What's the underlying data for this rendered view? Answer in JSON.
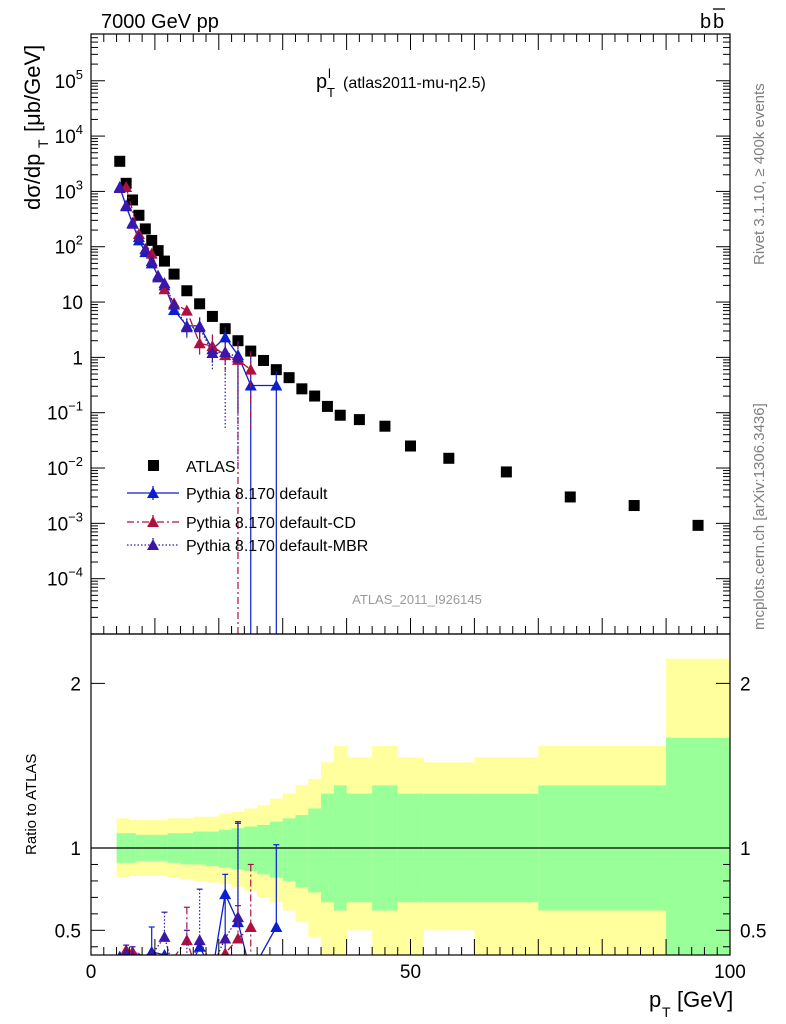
{
  "header": {
    "left": "7000 GeV pp",
    "right_main": "b",
    "right_bar": "b"
  },
  "side": {
    "rivet": "Rivet 3.1.10, ≥ 400k events",
    "mcplots": "mcplots.cern.ch [arXiv:1306.3436]"
  },
  "chart_data": [
    {
      "type": "scatter",
      "title": "p",
      "title_sup": "l",
      "title_sub": "T",
      "title_extra": "(atlas2011-mu-η2.5)",
      "ylabel": "dσ/dp",
      "ylabel_sub": "T",
      "ylabel_unit": "[μb/GeV]",
      "xlabel": "p",
      "xlabel_sub": "T",
      "xlabel_unit": "[GeV]",
      "watermark": "ATLAS_2011_I926145",
      "yscale": "log",
      "xlim": [
        0,
        100
      ],
      "ylim": [
        1e-05,
        700000.0
      ],
      "yticks": [
        {
          "v": 0.0001,
          "b": "10",
          "e": "−4"
        },
        {
          "v": 0.001,
          "b": "10",
          "e": "−3"
        },
        {
          "v": 0.01,
          "b": "10",
          "e": "−2"
        },
        {
          "v": 0.1,
          "b": "10",
          "e": "−1"
        },
        {
          "v": 1,
          "b": "1",
          "e": ""
        },
        {
          "v": 10,
          "b": "10",
          "e": ""
        },
        {
          "v": 100,
          "b": "10",
          "e": "2"
        },
        {
          "v": 1000,
          "b": "10",
          "e": "3"
        },
        {
          "v": 10000,
          "b": "10",
          "e": "4"
        },
        {
          "v": 100000,
          "b": "10",
          "e": "5"
        }
      ],
      "legend_position": "lower-left",
      "series": [
        {
          "name": "ATLAS",
          "style": "data",
          "color": "#000000",
          "x": [
            4.5,
            5.5,
            6.5,
            7.5,
            8.5,
            9.5,
            10.5,
            11.5,
            13,
            15,
            17,
            19,
            21,
            23,
            25,
            27,
            29,
            31,
            33,
            35,
            37,
            39,
            42,
            46,
            50,
            56,
            65,
            75,
            85,
            95
          ],
          "y": [
            3500,
            1400,
            700,
            370,
            210,
            130,
            85,
            55,
            32,
            16,
            9.3,
            5.5,
            3.3,
            2.0,
            1.3,
            0.88,
            0.6,
            0.43,
            0.27,
            0.2,
            0.13,
            0.09,
            0.075,
            0.057,
            0.025,
            0.015,
            0.0085,
            0.003,
            0.0021,
            0.00092
          ]
        },
        {
          "name": "Pythia 8.170 default",
          "style": "solid",
          "color": "#0a1fcd",
          "x": [
            4.5,
            5.5,
            6.5,
            7.5,
            8.5,
            9.5,
            10.5,
            11.5,
            13,
            15,
            17,
            19,
            21,
            23,
            25,
            29
          ],
          "y": [
            1200,
            540,
            270,
            130,
            80,
            50,
            30,
            20,
            7.2,
            3.7,
            3.7,
            1.4,
            2.3,
            1.1,
            0.31,
            0.31
          ],
          "err_up": [
            null,
            null,
            null,
            null,
            null,
            null,
            null,
            null,
            null,
            1.4,
            1.6,
            0.6,
            1.2,
            null,
            0.9,
            0.25
          ],
          "err_dn": [
            null,
            null,
            null,
            null,
            null,
            null,
            null,
            null,
            null,
            1.3,
            1.5,
            0.6,
            1.3,
            1.0,
            0.31,
            0.31
          ]
        },
        {
          "name": "Pythia 8.170 default-CD",
          "style": "dashdot",
          "color": "#b0103d",
          "x": [
            5.5,
            7.5,
            9.5,
            11.5,
            13,
            15,
            17,
            19,
            21,
            23,
            25
          ],
          "y": [
            1200,
            170,
            75,
            17,
            9.5,
            7.0,
            1.8,
            1.6,
            1.1,
            0.9,
            0.6
          ],
          "err_up": [
            null,
            null,
            null,
            null,
            null,
            null,
            1.0,
            1.0,
            0.7,
            1.0,
            0.7
          ],
          "err_dn": [
            null,
            null,
            null,
            null,
            null,
            null,
            0.8,
            0.8,
            0.6,
            0.9,
            0.55
          ]
        },
        {
          "name": "Pythia 8.170 default-MBR",
          "style": "dotted",
          "color": "#3b16a8",
          "x": [
            4.5,
            5.5,
            6.5,
            7.5,
            8.5,
            9.5,
            10.5,
            11.5,
            13,
            15,
            17,
            19,
            21,
            23
          ],
          "y": [
            1150,
            560,
            260,
            150,
            90,
            55,
            28,
            22,
            9,
            3.5,
            3.5,
            1.2,
            1.25,
            1.0
          ],
          "err_up": [
            null,
            null,
            null,
            null,
            null,
            null,
            null,
            null,
            null,
            1.5,
            1.6,
            0.6,
            0.9,
            1.0
          ],
          "err_dn": [
            null,
            null,
            null,
            null,
            null,
            null,
            null,
            null,
            null,
            1.4,
            1.4,
            0.6,
            1.2,
            0.99
          ]
        }
      ]
    },
    {
      "type": "line",
      "ylabel": "Ratio to ATLAS",
      "xlim": [
        0,
        100
      ],
      "ylim": [
        0.35,
        2.3
      ],
      "xticks": [
        0,
        50,
        100
      ],
      "yticks": [
        0.5,
        1,
        2
      ],
      "reference_line": 1,
      "bands": {
        "edges": [
          4,
          5,
          6,
          7,
          8,
          9,
          10,
          11,
          12,
          14,
          16,
          18,
          20,
          22,
          24,
          26,
          28,
          30,
          32,
          34,
          36,
          38,
          40,
          44,
          48,
          52,
          60,
          70,
          90,
          100
        ],
        "yellow_hi": [
          1.18,
          1.18,
          1.17,
          1.17,
          1.17,
          1.17,
          1.17,
          1.17,
          1.18,
          1.18,
          1.19,
          1.19,
          1.21,
          1.22,
          1.24,
          1.26,
          1.3,
          1.33,
          1.38,
          1.42,
          1.52,
          1.62,
          1.55,
          1.62,
          1.55,
          1.52,
          1.55,
          1.62,
          2.15
        ],
        "yellow_lo": [
          0.82,
          0.82,
          0.83,
          0.83,
          0.83,
          0.83,
          0.83,
          0.83,
          0.82,
          0.81,
          0.8,
          0.79,
          0.78,
          0.76,
          0.74,
          0.7,
          0.67,
          0.62,
          0.55,
          0.46,
          0.35,
          0.35,
          0.5,
          0.35,
          0.35,
          0.5,
          0.35,
          0.35,
          0.35
        ],
        "green_hi": [
          1.09,
          1.09,
          1.09,
          1.08,
          1.08,
          1.08,
          1.08,
          1.08,
          1.09,
          1.09,
          1.1,
          1.1,
          1.11,
          1.12,
          1.13,
          1.14,
          1.16,
          1.18,
          1.2,
          1.24,
          1.33,
          1.38,
          1.33,
          1.38,
          1.33,
          1.33,
          1.33,
          1.38,
          1.67
        ],
        "green_lo": [
          0.91,
          0.91,
          0.91,
          0.92,
          0.92,
          0.92,
          0.92,
          0.92,
          0.91,
          0.9,
          0.9,
          0.89,
          0.88,
          0.87,
          0.86,
          0.84,
          0.82,
          0.8,
          0.76,
          0.73,
          0.67,
          0.62,
          0.67,
          0.62,
          0.67,
          0.67,
          0.67,
          0.62,
          0.35
        ]
      },
      "series": [
        {
          "name": "Pythia 8.170 default",
          "style": "solid",
          "color": "#0a1fcd",
          "x": [
            4.5,
            5.5,
            6.5,
            7.5,
            9.5,
            11.5,
            13,
            15,
            17,
            19,
            21,
            23,
            25,
            29
          ],
          "y": [
            0.34,
            0.35,
            0.36,
            0.32,
            0.37,
            0.35,
            0.22,
            0.23,
            0.4,
            0.25,
            0.72,
            0.55,
            0.24,
            0.52
          ],
          "err_up": [
            null,
            null,
            null,
            null,
            0.15,
            null,
            null,
            null,
            null,
            null,
            0.12,
            0.6,
            null,
            0.5
          ],
          "err_dn": [
            null,
            null,
            null,
            null,
            null,
            null,
            null,
            null,
            null,
            null,
            0.4,
            null,
            null,
            null
          ]
        },
        {
          "name": "Pythia 8.170 default-CD",
          "style": "dashdot",
          "color": "#b0103d",
          "x": [
            5.5,
            6.5,
            9.5,
            11.5,
            15,
            17,
            19,
            21,
            23,
            25
          ],
          "y": [
            0.38,
            0.37,
            0.33,
            0.26,
            0.44,
            0.2,
            0.32,
            0.36,
            0.45,
            0.52
          ],
          "err_up": [
            null,
            null,
            null,
            null,
            0.2,
            null,
            null,
            null,
            0.2,
            0.38
          ],
          "err_dn": [
            null,
            null,
            null,
            null,
            null,
            null,
            null,
            null,
            null,
            0.25
          ]
        },
        {
          "name": "Pythia 8.170 default-MBR",
          "style": "dotted",
          "color": "#3b16a8",
          "x": [
            4.5,
            5.5,
            6.5,
            7.5,
            9.5,
            11.5,
            13,
            15,
            17,
            19,
            21,
            23
          ],
          "y": [
            0.33,
            0.36,
            0.34,
            0.33,
            0.35,
            0.46,
            0.25,
            0.23,
            0.44,
            0.28,
            0.45,
            0.58
          ],
          "err_up": [
            null,
            0.05,
            0.06,
            null,
            null,
            0.15,
            null,
            0.27,
            0.31,
            null,
            null,
            0.58
          ],
          "err_dn": [
            null,
            null,
            null,
            null,
            null,
            null,
            null,
            null,
            null,
            null,
            null,
            null
          ]
        }
      ]
    }
  ]
}
